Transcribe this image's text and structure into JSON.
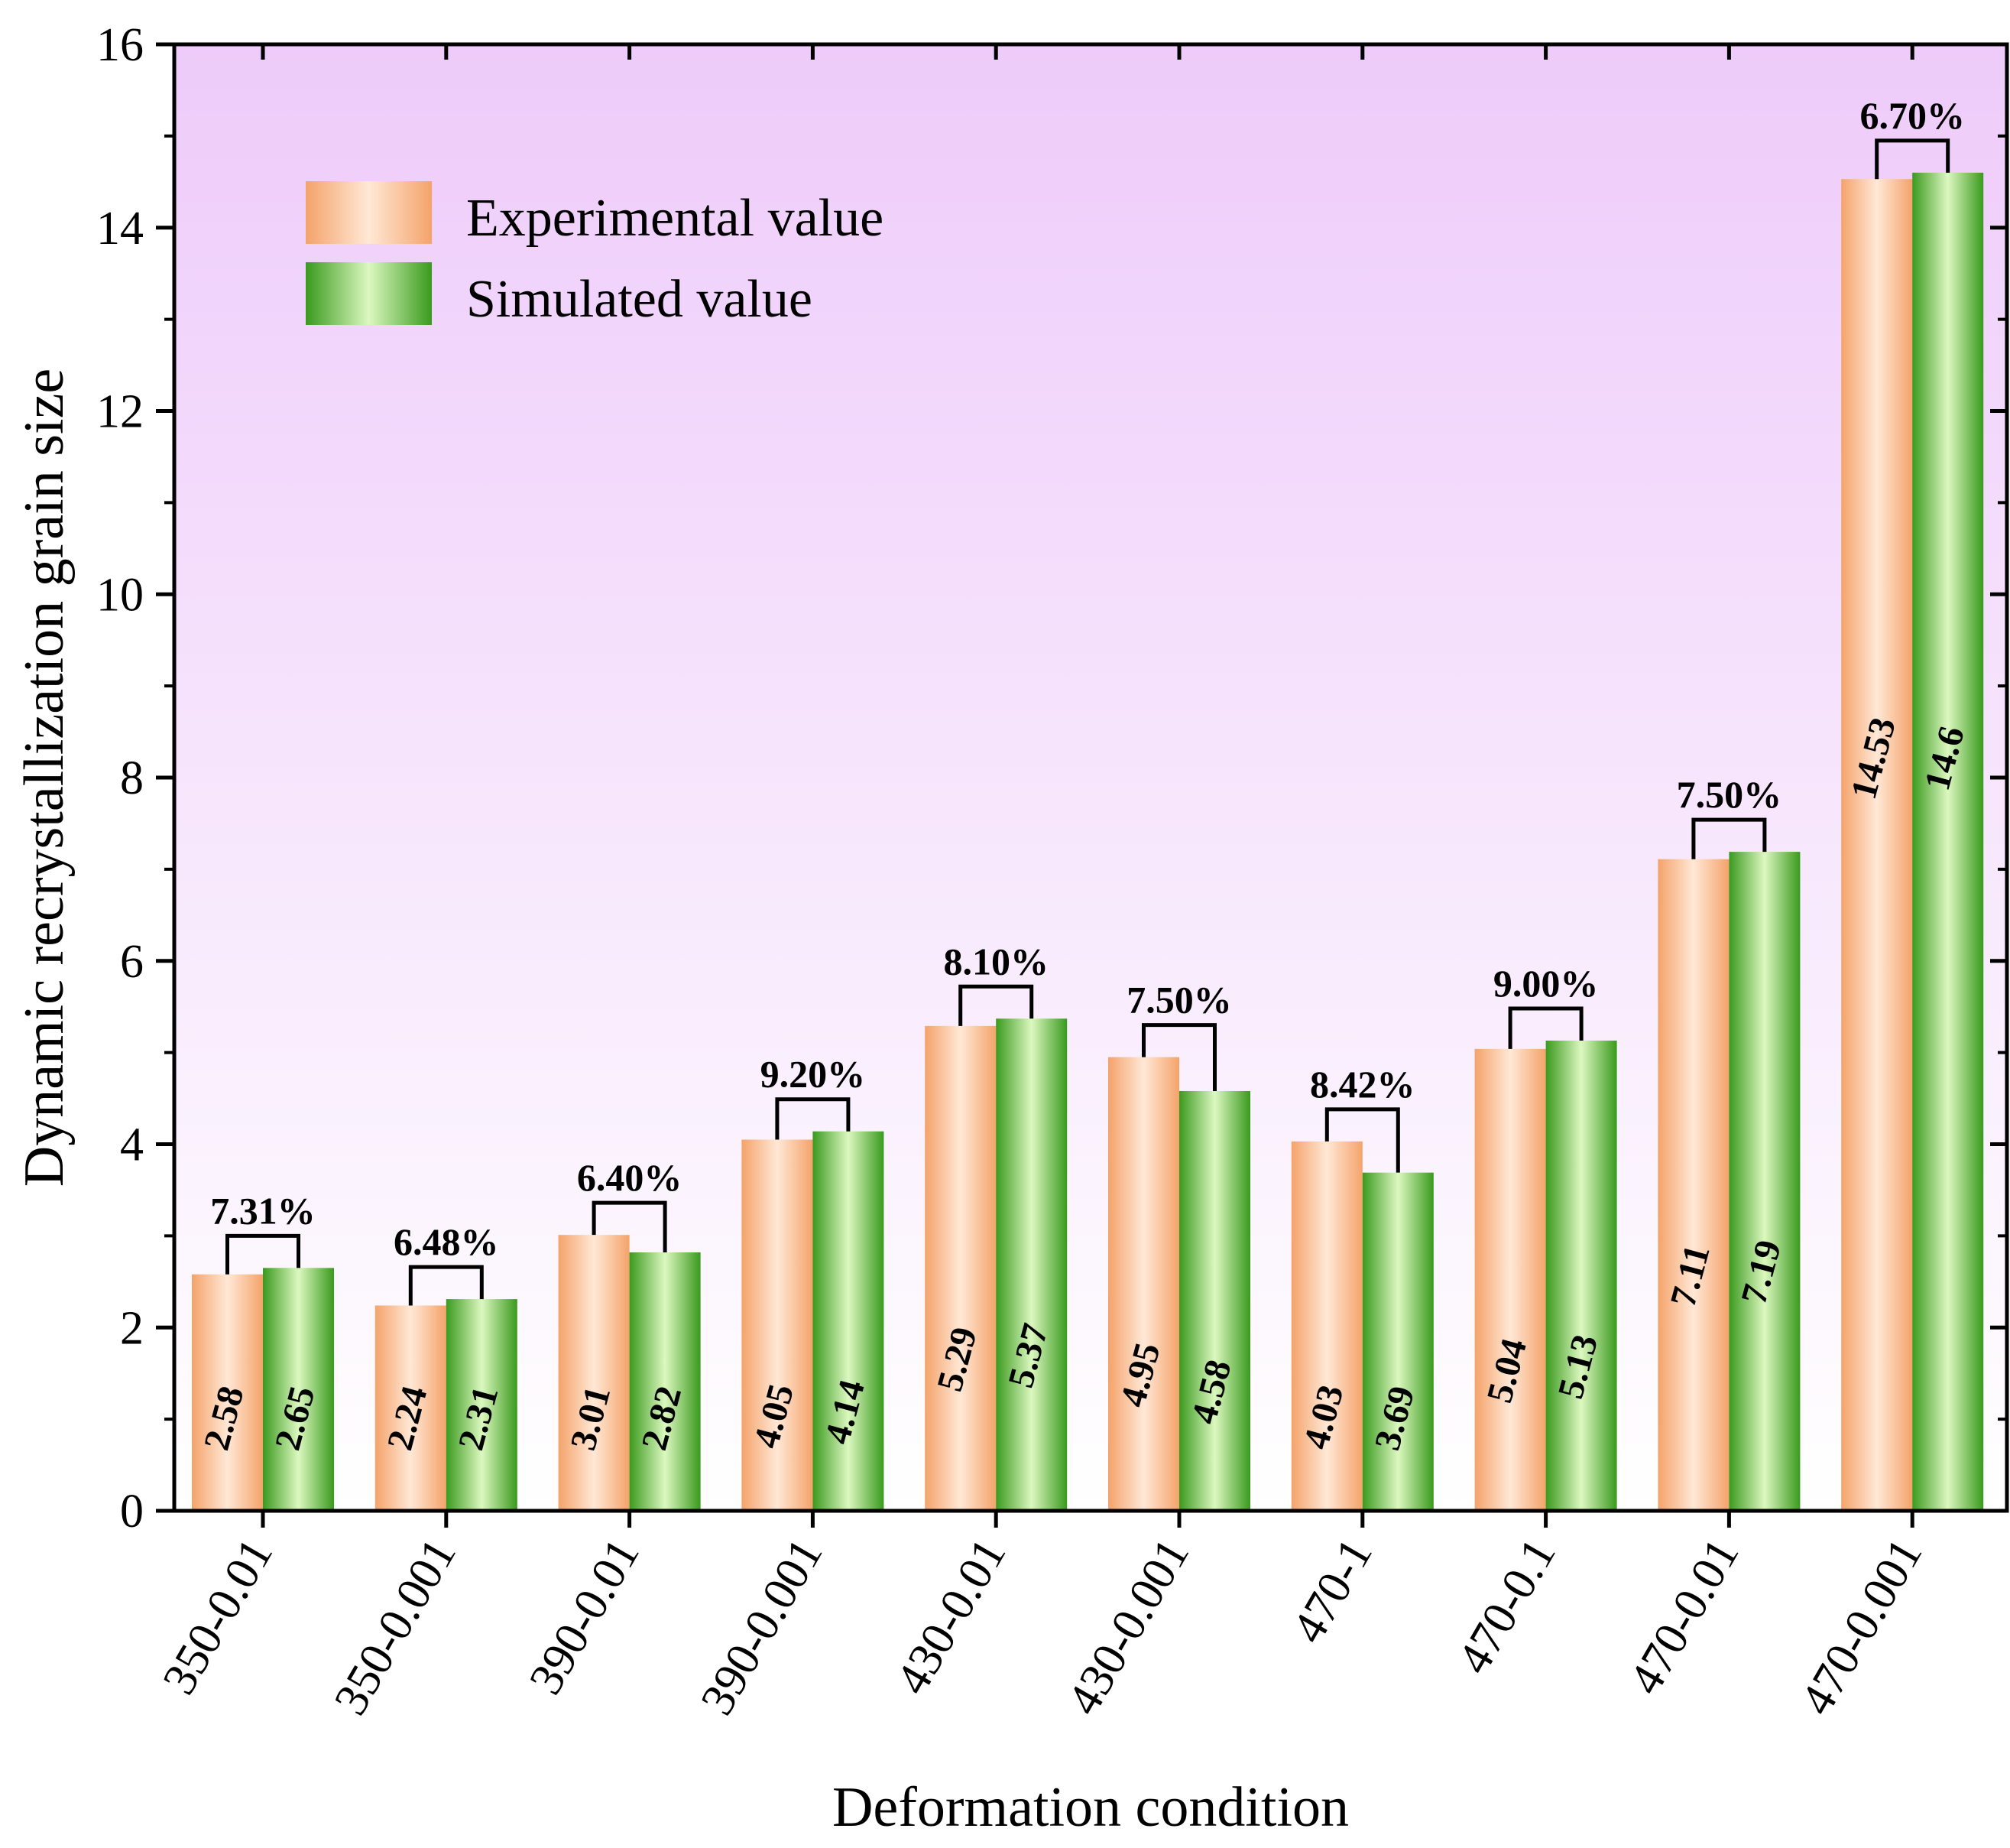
{
  "chart_data": {
    "type": "bar",
    "title": "",
    "xlabel": "Deformation condition",
    "ylabel": "Dynamic recrystallization grain size",
    "ylim": [
      0,
      16
    ],
    "yticks": [
      0,
      2,
      4,
      6,
      8,
      10,
      12,
      14,
      16
    ],
    "categories": [
      "350-0.01",
      "350-0.001",
      "390-0.01",
      "390-0.001",
      "430-0.01",
      "430-0.001",
      "470-1",
      "470-0.1",
      "470-0.01",
      "470-0.001"
    ],
    "series": [
      {
        "name": "Experimental value",
        "values": [
          2.58,
          2.24,
          3.01,
          4.05,
          5.29,
          4.95,
          4.03,
          5.04,
          7.11,
          14.53
        ],
        "labels": [
          "2.58",
          "2.24",
          "3.01",
          "4.05",
          "5.29",
          "4.95",
          "4.03",
          "5.04",
          "7.11",
          "14.53"
        ]
      },
      {
        "name": "Simulated value",
        "values": [
          2.65,
          2.31,
          2.82,
          4.14,
          5.37,
          4.58,
          3.69,
          5.13,
          7.19,
          14.6
        ],
        "labels": [
          "2.65",
          "2.31",
          "2.82",
          "4.14",
          "5.37",
          "4.58",
          "3.69",
          "5.13",
          "7.19",
          "14.6"
        ]
      }
    ],
    "errors": [
      "7.31%",
      "6.48%",
      "6.40%",
      "9.20%",
      "8.10%",
      "7.50%",
      "8.42%",
      "9.00%",
      "7.50%",
      "6.70%"
    ],
    "legend_position": "top-left",
    "colors": {
      "experimental_edge": "#f4a36a",
      "experimental_center": "#ffe8d6",
      "simulated_edge": "#3a9a1e",
      "simulated_center": "#dcf8c0",
      "background_top": "#eecbfa",
      "background_bottom": "#ffffff"
    }
  }
}
